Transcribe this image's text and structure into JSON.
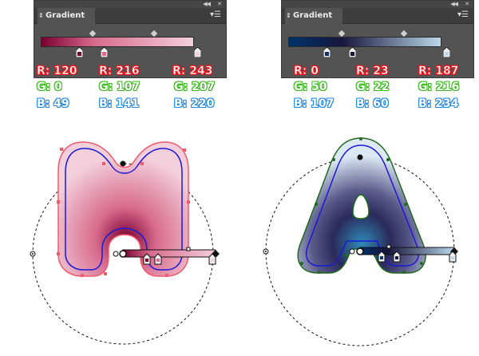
{
  "panels": [
    {
      "title": "Gradient",
      "gradient": {
        "from": "#780031",
        "mid": "#d86b8d",
        "to": "#f3cfdc"
      },
      "stops": [
        {
          "color": "#780031",
          "r": "R: 120",
          "g": "G: 0",
          "b": "B: 49"
        },
        {
          "color": "#d86b8d",
          "r": "R: 216",
          "g": "G: 107",
          "b": "B: 141"
        },
        {
          "color": "#f3cfdc",
          "r": "R: 243",
          "g": "G: 207",
          "b": "B: 220"
        }
      ]
    },
    {
      "title": "Gradient",
      "gradient": {
        "from": "#00326b",
        "mid": "#17163c",
        "to": "#bbd8ea"
      },
      "stops": [
        {
          "color": "#00326b",
          "r": "R: 0",
          "g": "G: 50",
          "b": "B: 107"
        },
        {
          "color": "#17163c",
          "r": "R: 23",
          "g": "G: 22",
          "b": "B: 60"
        },
        {
          "color": "#bbd8ea",
          "r": "R: 187",
          "g": "G: 216",
          "b": "B: 234"
        }
      ]
    }
  ],
  "icons": {
    "collapse": "double-chevron-left-icon",
    "close": "close-icon",
    "menu": "panel-menu-icon",
    "tab_arrows": "up-down-arrows-icon"
  },
  "colors": {
    "r_label": "#e8141c",
    "g_label": "#36b71a",
    "b_label": "#1d86e6",
    "panel_bg": "#535353",
    "path_blue": "#1a1ad6",
    "shape_pink_outline": "#f05a6a",
    "shape_green_outline": "#1e6a1e"
  }
}
